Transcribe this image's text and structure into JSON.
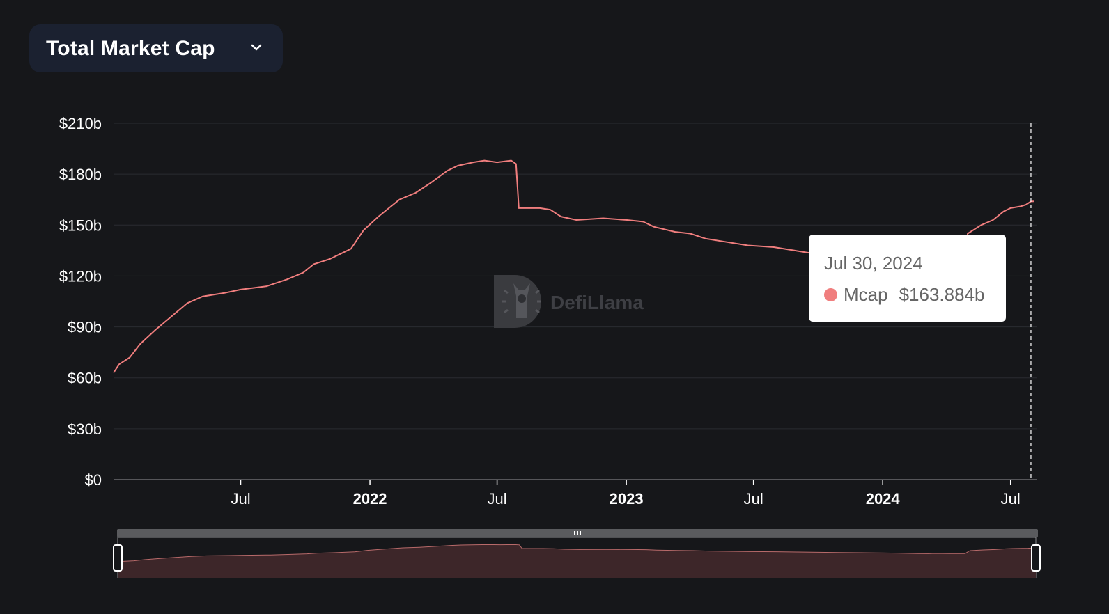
{
  "header": {
    "selector_label": "Total Market Cap"
  },
  "colors": {
    "background": "#16171a",
    "line": "#f07e7e",
    "grid": "#2a2c31",
    "axis_text": "#ffffff",
    "brush_fill": "#3d2629",
    "brush_bar": "#5a5b5e",
    "watermark": "#3a3b3f"
  },
  "watermark": {
    "text": "DefiLlama",
    "icon": "defillama-logo-icon"
  },
  "tooltip": {
    "date": "Jul 30, 2024",
    "series_name": "Mcap",
    "value": "$163.884b",
    "dot_color": "#f07e7e"
  },
  "chart_data": {
    "type": "area",
    "ylim": [
      0,
      210
    ],
    "ytick_labels": [
      "$0",
      "$30b",
      "$60b",
      "$90b",
      "$120b",
      "$150b",
      "$180b",
      "$210b"
    ],
    "ytick_values": [
      0,
      30,
      60,
      90,
      120,
      150,
      180,
      210
    ],
    "xlim": [
      "2021-01-01",
      "2024-08-03"
    ],
    "xticks": [
      {
        "date": "2021-07-01",
        "label": "Jul",
        "major": false
      },
      {
        "date": "2022-01-01",
        "label": "2022",
        "major": true
      },
      {
        "date": "2022-07-01",
        "label": "Jul",
        "major": false
      },
      {
        "date": "2023-01-01",
        "label": "2023",
        "major": true
      },
      {
        "date": "2023-07-01",
        "label": "Jul",
        "major": false
      },
      {
        "date": "2024-01-01",
        "label": "2024",
        "major": true
      },
      {
        "date": "2024-07-01",
        "label": "Jul",
        "major": false
      }
    ],
    "hover_date": "2024-07-30",
    "series": [
      {
        "name": "Mcap",
        "points": [
          [
            "2021-01-01",
            63
          ],
          [
            "2021-01-09",
            68
          ],
          [
            "2021-01-24",
            72
          ],
          [
            "2021-02-08",
            80
          ],
          [
            "2021-03-01",
            88
          ],
          [
            "2021-03-24",
            96
          ],
          [
            "2021-04-16",
            104
          ],
          [
            "2021-05-08",
            108
          ],
          [
            "2021-06-08",
            110
          ],
          [
            "2021-07-01",
            112
          ],
          [
            "2021-08-07",
            114
          ],
          [
            "2021-09-05",
            118
          ],
          [
            "2021-09-28",
            122
          ],
          [
            "2021-10-13",
            127
          ],
          [
            "2021-11-05",
            130
          ],
          [
            "2021-11-20",
            133
          ],
          [
            "2021-12-05",
            136
          ],
          [
            "2021-12-23",
            147
          ],
          [
            "2022-01-13",
            155
          ],
          [
            "2022-01-28",
            160
          ],
          [
            "2022-02-12",
            165
          ],
          [
            "2022-03-07",
            169
          ],
          [
            "2022-03-29",
            175
          ],
          [
            "2022-04-21",
            182
          ],
          [
            "2022-05-06",
            185
          ],
          [
            "2022-05-28",
            187
          ],
          [
            "2022-06-13",
            188
          ],
          [
            "2022-07-01",
            187
          ],
          [
            "2022-07-21",
            188
          ],
          [
            "2022-07-28",
            186
          ],
          [
            "2022-08-01",
            160
          ],
          [
            "2022-08-31",
            160
          ],
          [
            "2022-09-15",
            159
          ],
          [
            "2022-09-30",
            155
          ],
          [
            "2022-10-22",
            153
          ],
          [
            "2022-11-29",
            154
          ],
          [
            "2023-01-02",
            153
          ],
          [
            "2023-01-25",
            152
          ],
          [
            "2023-02-09",
            149
          ],
          [
            "2023-03-11",
            146
          ],
          [
            "2023-04-02",
            145
          ],
          [
            "2023-04-24",
            142
          ],
          [
            "2023-05-24",
            140
          ],
          [
            "2023-06-23",
            138
          ],
          [
            "2023-07-30",
            137
          ],
          [
            "2023-08-29",
            135
          ],
          [
            "2023-09-28",
            133
          ],
          [
            "2023-10-28",
            131
          ],
          [
            "2023-11-27",
            130
          ],
          [
            "2023-12-19",
            129
          ],
          [
            "2024-01-18",
            127
          ],
          [
            "2024-02-17",
            124
          ],
          [
            "2024-03-03",
            123
          ],
          [
            "2024-03-11",
            125
          ],
          [
            "2024-04-02",
            124
          ],
          [
            "2024-04-24",
            124
          ],
          [
            "2024-05-01",
            145
          ],
          [
            "2024-05-20",
            150
          ],
          [
            "2024-06-06",
            153
          ],
          [
            "2024-06-21",
            158
          ],
          [
            "2024-07-01",
            160
          ],
          [
            "2024-07-15",
            161
          ],
          [
            "2024-07-23",
            162
          ],
          [
            "2024-07-30",
            163.884
          ],
          [
            "2024-08-03",
            164
          ]
        ]
      }
    ]
  }
}
